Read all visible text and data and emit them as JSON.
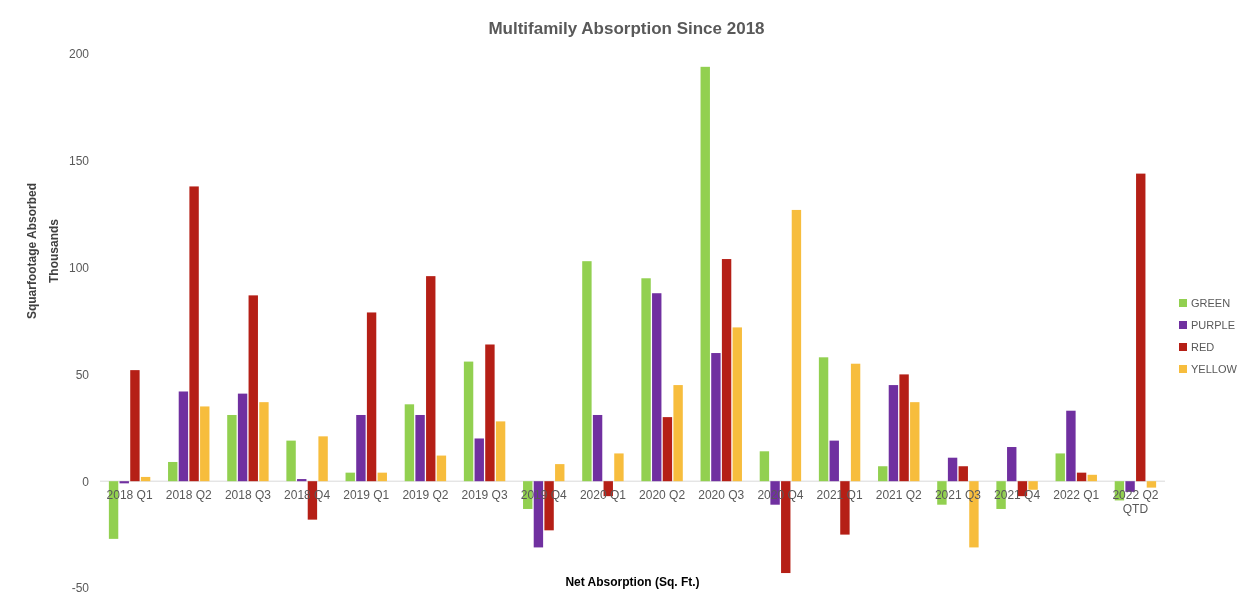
{
  "chart_data": {
    "type": "bar",
    "title": "Multifamily Absorption Since 2018",
    "xlabel": "Net Absorption (Sq. Ft.)",
    "ylabel": "Squarfootage Absorbed",
    "annotations": [
      "Thousands"
    ],
    "categories": [
      "2018 Q1",
      "2018 Q2",
      "2018 Q3",
      "2018 Q4",
      "2019 Q1",
      "2019 Q2",
      "2019 Q3",
      "2019 Q4",
      "2020 Q1",
      "2020 Q2",
      "2020 Q3",
      "2020 Q4",
      "2021 Q1",
      "2021 Q2",
      "2021 Q3",
      "2021 Q4",
      "2022 Q1",
      "2022 Q2 QTD"
    ],
    "series": [
      {
        "name": "GREEN",
        "color": "#92d050",
        "values": [
          -27,
          9,
          31,
          19,
          4,
          36,
          56,
          -13,
          103,
          95,
          194,
          14,
          58,
          7,
          -11,
          -13,
          13,
          -9
        ]
      },
      {
        "name": "PURPLE",
        "color": "#7030a0",
        "values": [
          -1,
          42,
          41,
          1,
          31,
          31,
          20,
          -31,
          31,
          88,
          60,
          -11,
          19,
          45,
          11,
          16,
          33,
          -5
        ]
      },
      {
        "name": "RED",
        "color": "#b51f16",
        "values": [
          52,
          138,
          87,
          -18,
          79,
          96,
          64,
          -23,
          -7,
          30,
          104,
          -43,
          -25,
          50,
          7,
          -7,
          4,
          144
        ]
      },
      {
        "name": "YELLOW",
        "color": "#f7bd3d",
        "values": [
          2,
          35,
          37,
          21,
          4,
          12,
          28,
          8,
          13,
          45,
          72,
          127,
          55,
          37,
          -31,
          -4,
          3,
          -3
        ]
      }
    ],
    "ylim": [
      -50,
      200
    ],
    "yticks": [
      -50,
      0,
      50,
      100,
      150,
      200
    ],
    "grid": false,
    "legend": "right"
  }
}
